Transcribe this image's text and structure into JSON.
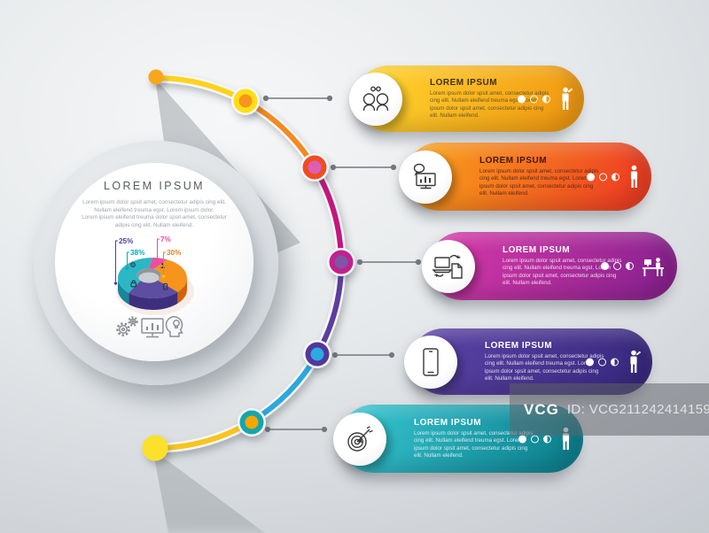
{
  "watermark": {
    "brand": "VCG",
    "id_label": "ID: VCG211242414159"
  },
  "center": {
    "title": "LOREM IPSUM",
    "body_lines": [
      "Lorem ipsum dolor spsit amet, consectetur adipis cing elit.",
      "Nullam eleifend treuma egst. Lorem ipsum dolor.",
      "Lorem ipsum eleifend treuma dolor spsit amet, consectetur",
      "adipis cing elit. Nullam eleifend."
    ]
  },
  "chart_data": {
    "type": "pie",
    "style": "3d-donut",
    "title": "LOREM IPSUM",
    "legend_position": "none",
    "segments": [
      {
        "label": "38%",
        "value": 38,
        "color": "#2BB7C4",
        "color_side": "#17869B",
        "label_color": "#00AEBD"
      },
      {
        "label": "25%",
        "value": 25,
        "color": "#5C4EA0",
        "color_side": "#3E2F7E",
        "label_color": "#4B3F9E"
      },
      {
        "label": "30%",
        "value": 30,
        "color": "#F7941E",
        "color_side": "#D2620E",
        "label_color": "#F47B20"
      },
      {
        "label": "7%",
        "value": 7,
        "color": "#E8519E",
        "color_side": "#BB2F7F",
        "label_color": "#EC4A9B"
      }
    ]
  },
  "timeline": {
    "arc_colors": [
      "#FFD21E",
      "#F58A1F",
      "#C4167E",
      "#5C3D9E",
      "#2AA9DF",
      "#F7C51E"
    ],
    "connector_color": "#75797D",
    "start_dot_color": "#F9A61A",
    "end_dot_color": "#FCE12C"
  },
  "steps": [
    {
      "title": "LOREM IPSUM",
      "body": "Lorem ipsum dolor spsit amet, consectetur adipis cing elit. Nullam eleifend treuma egst. Lorem ipsum dolor spsit amet, consectetur adipis cing elit. Nullam eleifend.",
      "icon": "discussion-icon",
      "person_icon": "person-wave-icon",
      "pill_light": "#FFD42E",
      "pill_dark": "#F29B12",
      "title_color": "#3E2F15",
      "body_color": "#6A5426",
      "node_ring": "#FFDE17",
      "node_dot": "#F7941E"
    },
    {
      "title": "LOREM IPSUM",
      "body": "Lorem ipsum dolor spsit amet, consectetur adipis cing elit. Nullam eleifend treuma egst. Lorem ipsum dolor spsit amet, consectetur adipis cing elit. Nullam eleifend.",
      "icon": "presentation-icon",
      "person_icon": "person-standing-icon",
      "pill_light": "#F9A01B",
      "pill_dark": "#EF4123",
      "title_color": "#45160A",
      "body_color": "#5F2A14",
      "node_ring": "#F04E23",
      "node_dot": "#DC5FB4"
    },
    {
      "title": "LOREM IPSUM",
      "body": "Lorem ipsum dolor spsit amet, consectetur adipis cing elit. Nullam eleifend treuma egst. Lorem ipsum dolor spsit amet, consectetur adipis cing elit. Nullam eleifend.",
      "icon": "file-transfer-icon",
      "person_icon": "person-desk-icon",
      "pill_light": "#D438A8",
      "pill_dark": "#8E2391",
      "title_color": "#FFFFFF",
      "body_color": "rgba(255,255,255,0.82)",
      "node_ring": "#C0218F",
      "node_dot": "#7E57A5"
    },
    {
      "title": "LOREM IPSUM",
      "body": "Lorem ipsum dolor spsit amet, consectetur adipis cing elit. Nullam eleifend treuma egst. Lorem ipsum dolor spsit amet, consectetur adipis cing elit. Nullam eleifend.",
      "icon": "smartphone-icon",
      "person_icon": "person-wave-icon",
      "pill_light": "#5A43A5",
      "pill_dark": "#3A2A80",
      "title_color": "#FFFFFF",
      "body_color": "rgba(255,255,255,0.82)",
      "node_ring": "#52379B",
      "node_dot": "#29ABE2"
    },
    {
      "title": "LOREM IPSUM",
      "body": "Lorem ipsum dolor spsit amet, consectetur adipis cing elit. Nullam eleifend treuma egst. Lorem ipsum dolor spsit amet, consectetur adipis cing elit. Nullam eleifend.",
      "icon": "target-icon",
      "person_icon": "person-standing-icon",
      "pill_light": "#35C3CE",
      "pill_dark": "#0F8492",
      "title_color": "#FFFFFF",
      "body_color": "rgba(255,255,255,0.82)",
      "node_ring": "#16A5AD",
      "node_dot": "#F7A600"
    }
  ]
}
